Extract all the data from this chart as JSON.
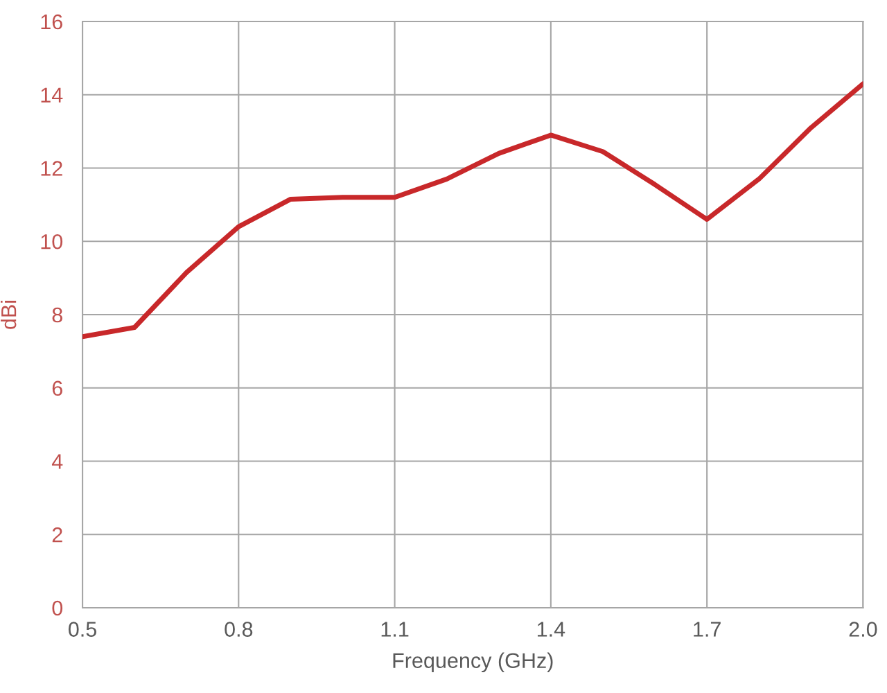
{
  "chart_data": {
    "type": "line",
    "xlabel": "Frequency (GHz)",
    "ylabel": "dBi",
    "x": [
      0.5,
      0.6,
      0.7,
      0.8,
      0.9,
      1.0,
      1.1,
      1.2,
      1.3,
      1.4,
      1.5,
      1.6,
      1.7,
      1.8,
      1.9,
      2.0
    ],
    "series": [
      {
        "color": "#c8282a",
        "values": [
          7.4,
          7.65,
          9.15,
          10.4,
          11.15,
          11.2,
          11.2,
          11.7,
          12.4,
          12.9,
          12.45,
          11.55,
          10.6,
          11.7,
          13.1,
          14.3
        ]
      }
    ],
    "xlim": [
      0.5,
      2.0
    ],
    "xticks": [
      {
        "value": 0.5,
        "label": "0.5"
      },
      {
        "value": 0.8,
        "label": "0.8"
      },
      {
        "value": 1.1,
        "label": "1.1"
      },
      {
        "value": 1.4,
        "label": "1.4"
      },
      {
        "value": 1.7,
        "label": "1.7"
      },
      {
        "value": 2.0,
        "label": "2.0"
      }
    ],
    "ylim": [
      0,
      16
    ],
    "yticks": [
      0,
      2,
      4,
      6,
      8,
      10,
      12,
      14,
      16
    ],
    "grid": true,
    "marker": "none",
    "line_style": "solid"
  }
}
